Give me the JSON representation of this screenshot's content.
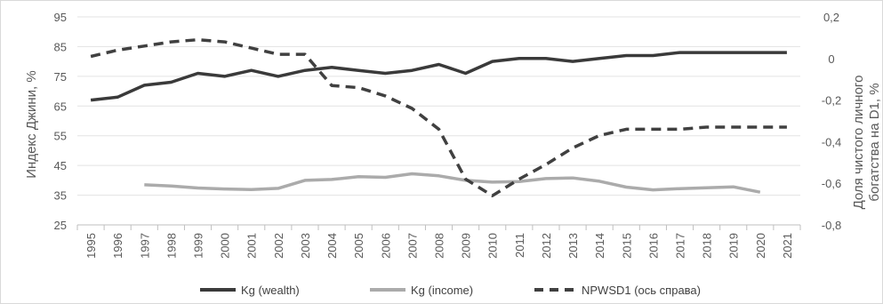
{
  "chart_data": {
    "type": "line",
    "categories": [
      "1995",
      "1996",
      "1997",
      "1998",
      "1999",
      "2000",
      "2001",
      "2002",
      "2003",
      "2004",
      "2005",
      "2006",
      "2007",
      "2008",
      "2009",
      "2010",
      "2011",
      "2012",
      "2013",
      "2014",
      "2015",
      "2016",
      "2017",
      "2018",
      "2019",
      "2020",
      "2021"
    ],
    "ylabel_left": "Индекс Джини, %",
    "ylabel_right_line1": "Доля чистого личного",
    "ylabel_right_line2": "богатства на D1, %",
    "y_left": {
      "min": 25,
      "max": 95,
      "ticks": [
        "95",
        "85",
        "75",
        "65",
        "55",
        "45",
        "35",
        "25"
      ]
    },
    "y_right": {
      "min": -0.8,
      "max": 0.2,
      "ticks": [
        "0,2",
        "0",
        "-0,2",
        "-0,4",
        "-0,6",
        "-0,8"
      ]
    },
    "grid": "horizontal",
    "legend_position": "bottom",
    "series": [
      {
        "name": "Kg (wealth)",
        "axis": "left",
        "color": "#3a3a3a",
        "style": "solid",
        "values": [
          67,
          68,
          72,
          73,
          76,
          75,
          77,
          75,
          77,
          78,
          77,
          76,
          77,
          79,
          76,
          80,
          81,
          81,
          80,
          81,
          82,
          82,
          83,
          83,
          83,
          83,
          83
        ]
      },
      {
        "name": "Kg (income)",
        "axis": "left",
        "color": "#ababab",
        "style": "solid",
        "values": [
          null,
          null,
          38.5,
          38.1,
          37.4,
          37.1,
          36.9,
          37.3,
          40.0,
          40.3,
          41.2,
          41.0,
          42.2,
          41.5,
          40.0,
          39.4,
          39.6,
          40.6,
          40.8,
          39.7,
          37.7,
          36.8,
          37.2,
          37.5,
          37.8,
          36.0,
          null
        ]
      },
      {
        "name": "NPWSD1 (ось справа)",
        "axis": "right",
        "color": "#404040",
        "style": "dashed",
        "values": [
          0.01,
          0.04,
          0.06,
          0.08,
          0.09,
          0.08,
          0.05,
          0.02,
          0.02,
          -0.13,
          -0.14,
          -0.18,
          -0.24,
          -0.34,
          -0.58,
          -0.66,
          -0.58,
          -0.51,
          -0.43,
          -0.37,
          -0.34,
          -0.34,
          -0.34,
          -0.33,
          -0.33,
          -0.33,
          -0.33
        ]
      }
    ]
  }
}
